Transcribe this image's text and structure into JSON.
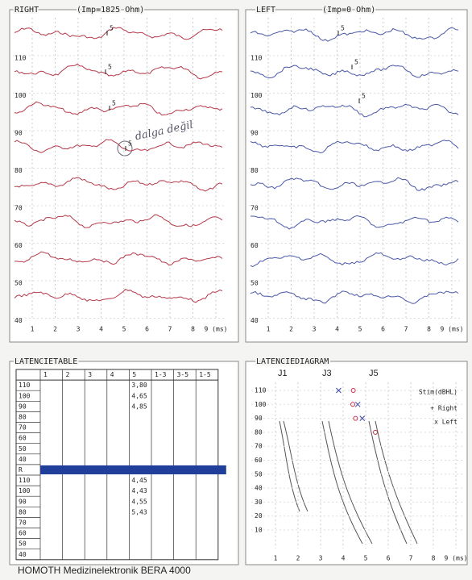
{
  "right_panel": {
    "title": "RIGHT",
    "impedance": "(Imp=1825 Ohm)",
    "y_labels": [
      "110",
      "100",
      "90",
      "80",
      "70",
      "60",
      "50",
      "40"
    ],
    "x_labels": [
      "1",
      "2",
      "3",
      "4",
      "5",
      "6",
      "7",
      "8",
      "9 (ms)"
    ],
    "annotation": "dalga değil"
  },
  "left_panel": {
    "title": "LEFT",
    "impedance": "(Imp=0 Ohm)",
    "y_labels": [
      "110",
      "100",
      "90",
      "80",
      "70",
      "60",
      "50",
      "40"
    ],
    "x_labels": [
      "1",
      "2",
      "3",
      "4",
      "5",
      "6",
      "7",
      "8",
      "9 (ms)"
    ]
  },
  "marker_label": "5",
  "latency_table": {
    "title": "LATENCIETABLE",
    "columns": [
      "1",
      "2",
      "3",
      "4",
      "5",
      "1-3",
      "3-5",
      "1-5"
    ],
    "rows": [
      {
        "label": "110",
        "5": "3,80"
      },
      {
        "label": "100",
        "5": "4,65"
      },
      {
        "label": "90",
        "5": "4,85"
      },
      {
        "label": "80"
      },
      {
        "label": "70"
      },
      {
        "label": "60"
      },
      {
        "label": "50"
      },
      {
        "label": "40"
      },
      {
        "label": "R"
      },
      {
        "label": "110",
        "5": "4,45"
      },
      {
        "label": "100",
        "5": "4,43"
      },
      {
        "label": "90",
        "5": "4,55"
      },
      {
        "label": "80",
        "5": "5,43"
      },
      {
        "label": "70"
      },
      {
        "label": "60"
      },
      {
        "label": "50"
      },
      {
        "label": "40"
      }
    ]
  },
  "latency_diagram": {
    "title": "LATENCIEDIAGRAM",
    "wave_labels": [
      "J1",
      "J3",
      "J5"
    ],
    "y_labels": [
      "110",
      "100",
      "90",
      "80",
      "70",
      "60",
      "50",
      "40",
      "30",
      "20",
      "10"
    ],
    "x_labels": [
      "1",
      "2",
      "3",
      "4",
      "5",
      "6",
      "7",
      "8",
      "9 (ms)"
    ],
    "legend_title": "Stim(dBHL)",
    "legend": [
      "+ Right",
      "x Left"
    ]
  },
  "footer": "HOMOTH Medizinelektronik BERA 4000"
}
